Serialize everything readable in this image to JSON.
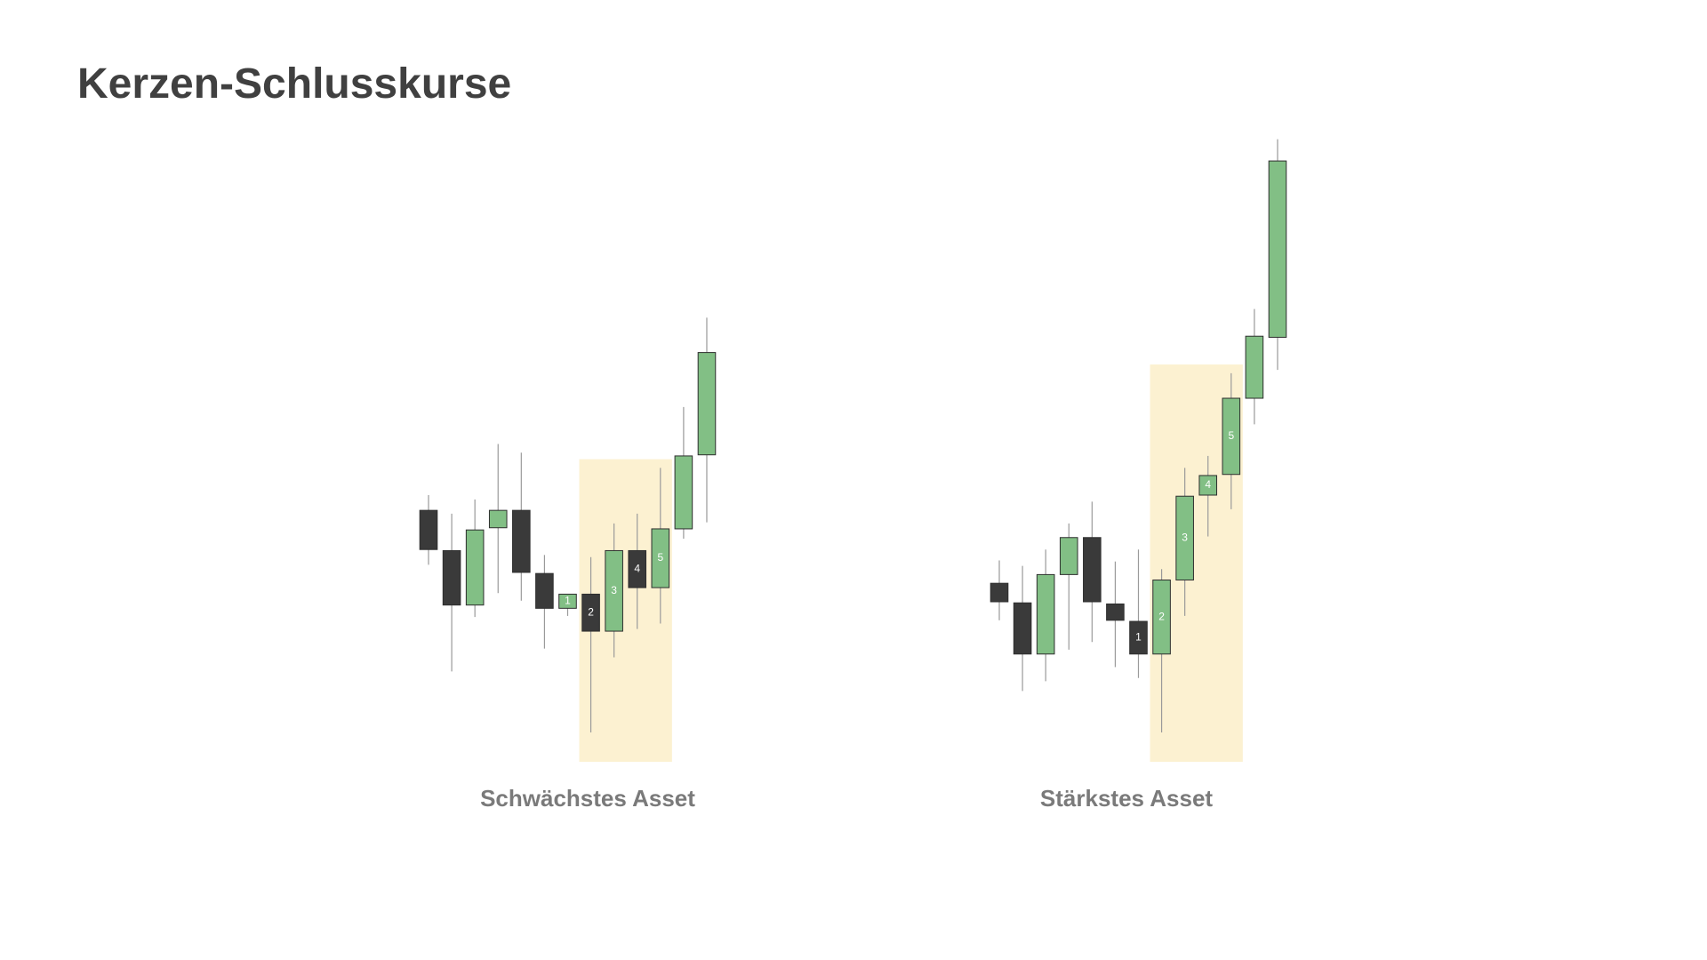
{
  "title": "Kerzen-Schlusskurse",
  "chart_data": [
    {
      "type": "candlestick",
      "title": "Schwächstes Asset",
      "open": [
        231,
        194,
        144,
        215,
        231,
        173,
        141,
        154,
        120,
        194,
        160,
        214,
        282
      ],
      "high": [
        245,
        228,
        241,
        292,
        284,
        190,
        154,
        188,
        219,
        228,
        270,
        326,
        408
      ],
      "low": [
        181,
        83,
        133,
        155,
        148,
        104,
        134,
        27,
        96,
        122,
        127,
        205,
        220
      ],
      "close": [
        195,
        144,
        213,
        231,
        174,
        141,
        154,
        120,
        194,
        160,
        214,
        281,
        376
      ],
      "labels": [
        null,
        null,
        null,
        null,
        null,
        null,
        "1",
        "2",
        "3",
        "4",
        "5",
        null,
        null
      ],
      "up_color": "#82bf85",
      "down_color": "#3a3a3a",
      "highlight": {
        "from": 7,
        "to": 10,
        "color": "#fcefc9"
      },
      "ylim": [
        0,
        600
      ]
    },
    {
      "type": "candlestick",
      "title": "Stärkstes Asset",
      "open": [
        164,
        146,
        99,
        172,
        206,
        145,
        129,
        99,
        167,
        245,
        264,
        334,
        390
      ],
      "high": [
        185,
        180,
        195,
        219,
        239,
        184,
        195,
        177,
        270,
        281,
        357,
        416,
        572
      ],
      "low": [
        130,
        65,
        74,
        103,
        110,
        87,
        77,
        27,
        134,
        207,
        232,
        310,
        360
      ],
      "close": [
        147,
        99,
        172,
        206,
        147,
        130,
        99,
        167,
        244,
        263,
        334,
        391,
        552
      ],
      "labels": [
        null,
        null,
        null,
        null,
        null,
        null,
        "1",
        "2",
        "3",
        "4",
        "5",
        null,
        null
      ],
      "up_color": "#82bf85",
      "down_color": "#3a3a3a",
      "highlight": {
        "from": 7,
        "to": 10,
        "color": "#fcefc9"
      },
      "ylim": [
        0,
        600
      ]
    }
  ]
}
